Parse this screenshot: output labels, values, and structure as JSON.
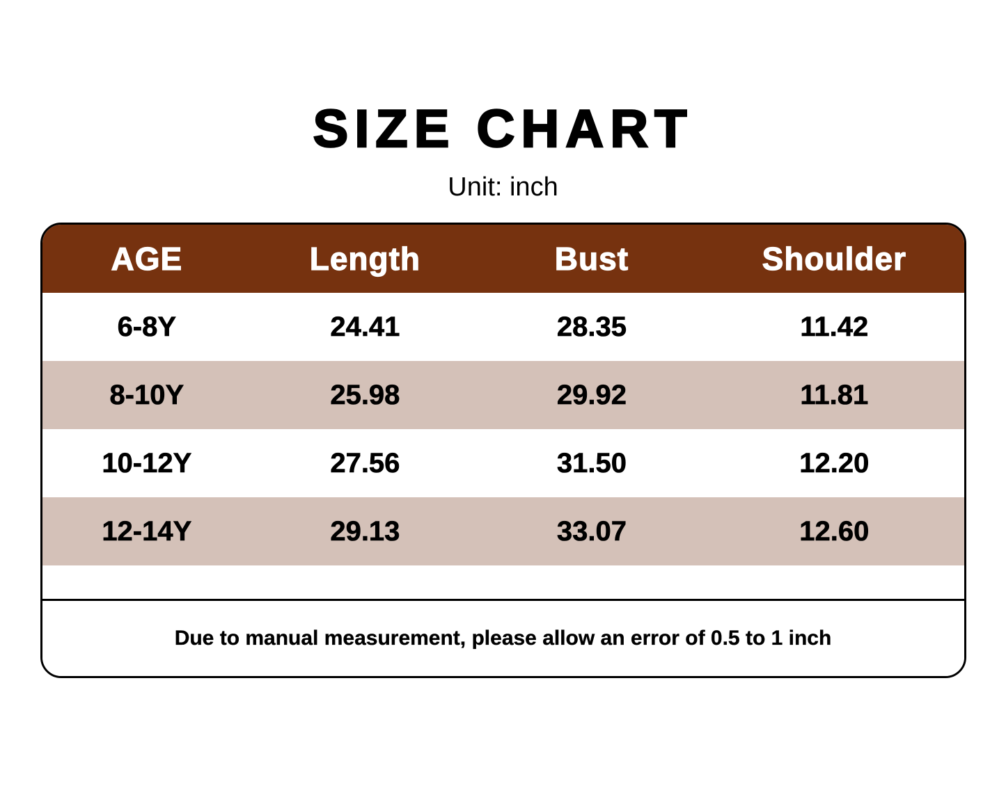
{
  "page": {
    "title": "SIZE CHART",
    "subtitle": "Unit: inch"
  },
  "table": {
    "columns": [
      "AGE",
      "Length",
      "Bust",
      "Shoulder"
    ],
    "rows": [
      [
        "6-8Y",
        "24.41",
        "28.35",
        "11.42"
      ],
      [
        "8-10Y",
        "25.98",
        "29.92",
        "11.81"
      ],
      [
        "10-12Y",
        "27.56",
        "31.50",
        "12.20"
      ],
      [
        "12-14Y",
        "29.13",
        "33.07",
        "12.60"
      ]
    ],
    "note": "Due to manual measurement, please allow an error of 0.5 to 1 inch"
  },
  "colors": {
    "header_bg": "#76320F",
    "alt_row_bg": "#D4C1B8",
    "row_bg": "#FFFFFF",
    "border": "#000000",
    "header_text": "#FFFFFF",
    "body_text": "#000000"
  },
  "chart_data": {
    "type": "table",
    "title": "SIZE CHART",
    "unit": "inch",
    "columns": [
      "AGE",
      "Length",
      "Bust",
      "Shoulder"
    ],
    "rows": [
      {
        "age": "6-8Y",
        "length": 24.41,
        "bust": 28.35,
        "shoulder": 11.42
      },
      {
        "age": "8-10Y",
        "length": 25.98,
        "bust": 29.92,
        "shoulder": 11.81
      },
      {
        "age": "10-12Y",
        "length": 27.56,
        "bust": 31.5,
        "shoulder": 12.2
      },
      {
        "age": "12-14Y",
        "length": 29.13,
        "bust": 33.07,
        "shoulder": 12.6
      }
    ],
    "note": "Due to manual measurement, please allow an error of 0.5 to 1 inch"
  }
}
